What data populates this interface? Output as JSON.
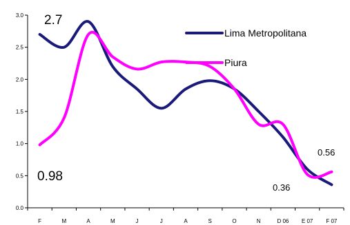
{
  "chart_data": {
    "type": "line",
    "title": "",
    "xlabel": "",
    "ylabel": "",
    "categories": [
      "F",
      "M",
      "A",
      "M",
      "J",
      "J",
      "A",
      "S",
      "O",
      "N",
      "D 06",
      "E 07",
      "F 07"
    ],
    "ylim": [
      0.0,
      3.0
    ],
    "yticks": [
      "0.0",
      "0.5",
      "1.0",
      "1.5",
      "2.0",
      "2.5",
      "3.0"
    ],
    "grid": false,
    "legend_position": "top-right",
    "series": [
      {
        "name": "Lima Metropolitana",
        "color": "#1a1a7a",
        "values": [
          2.7,
          2.5,
          2.9,
          2.2,
          1.85,
          1.55,
          1.85,
          1.98,
          1.85,
          1.5,
          1.1,
          0.6,
          0.36
        ]
      },
      {
        "name": "Piura",
        "color": "#ff00ff",
        "values": [
          0.98,
          1.4,
          2.7,
          2.35,
          2.16,
          2.27,
          2.27,
          2.2,
          1.85,
          1.3,
          1.3,
          0.52,
          0.56
        ]
      }
    ],
    "annotations": [
      {
        "text": "2.7",
        "size": "large"
      },
      {
        "text": "0.98",
        "size": "large"
      },
      {
        "text": "0.56",
        "size": "small"
      },
      {
        "text": "0.36",
        "size": "small"
      }
    ]
  }
}
